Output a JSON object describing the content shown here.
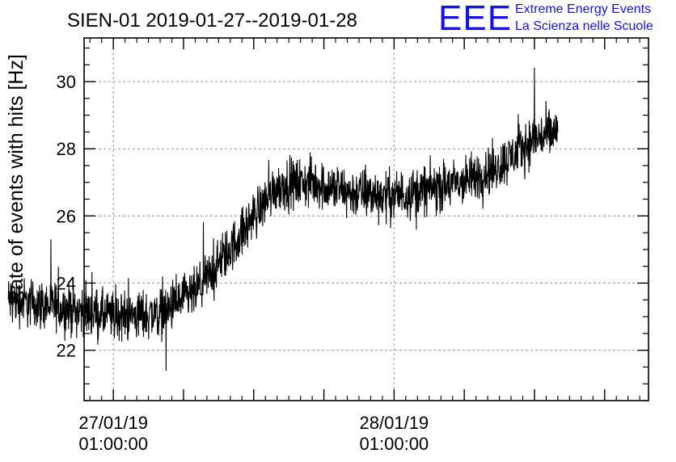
{
  "chart_data": {
    "type": "line",
    "title": "SIEN-01 2019-01-27--2019-01-28",
    "ylabel": "Rate of events with hits [Hz]",
    "xlabel": "",
    "ylim": [
      20.5,
      31.3
    ],
    "yticks": [
      22,
      24,
      26,
      28,
      30
    ],
    "xlim": [
      "2019-01-26 22:30:00",
      "2019-01-28 22:45:00"
    ],
    "xticks": [
      {
        "date": "27/01/19",
        "time": "01:00:00",
        "value": "2019-01-27 01:00:00"
      },
      {
        "date": "28/01/19",
        "time": "01:00:00",
        "value": "2019-01-28 01:00:00"
      }
    ],
    "grid": true,
    "series": [
      {
        "color": "#000000",
        "x_start": "2019-01-26 16:00:00",
        "x_end": "2019-01-28 15:00:00",
        "trend": [
          {
            "x": "2019-01-26 16:00:00",
            "y": 23.5
          },
          {
            "x": "2019-01-26 20:00:00",
            "y": 23.3
          },
          {
            "x": "2019-01-27 01:00:00",
            "y": 23.0
          },
          {
            "x": "2019-01-27 05:00:00",
            "y": 23.1
          },
          {
            "x": "2019-01-27 08:00:00",
            "y": 23.7
          },
          {
            "x": "2019-01-27 11:00:00",
            "y": 25.0
          },
          {
            "x": "2019-01-27 13:00:00",
            "y": 26.0
          },
          {
            "x": "2019-01-27 15:00:00",
            "y": 26.9
          },
          {
            "x": "2019-01-27 18:00:00",
            "y": 27.0
          },
          {
            "x": "2019-01-27 21:00:00",
            "y": 26.7
          },
          {
            "x": "2019-01-28 01:00:00",
            "y": 26.6
          },
          {
            "x": "2019-01-28 04:00:00",
            "y": 26.8
          },
          {
            "x": "2019-01-28 07:00:00",
            "y": 27.0
          },
          {
            "x": "2019-01-28 10:00:00",
            "y": 27.5
          },
          {
            "x": "2019-01-28 13:00:00",
            "y": 28.3
          },
          {
            "x": "2019-01-28 15:00:00",
            "y": 28.5
          }
        ],
        "noise_amplitude": 0.55,
        "max_point": {
          "x": "2019-01-28 13:00:00",
          "y": 30.4
        },
        "min_point": {
          "x": "2019-01-27 05:30:00",
          "y": 21.4
        }
      }
    ]
  },
  "logo": {
    "mark": "EEE",
    "line1": "Extreme Energy Events",
    "line2": "La Scienza nelle Scuole",
    "color": "#1414e6"
  }
}
